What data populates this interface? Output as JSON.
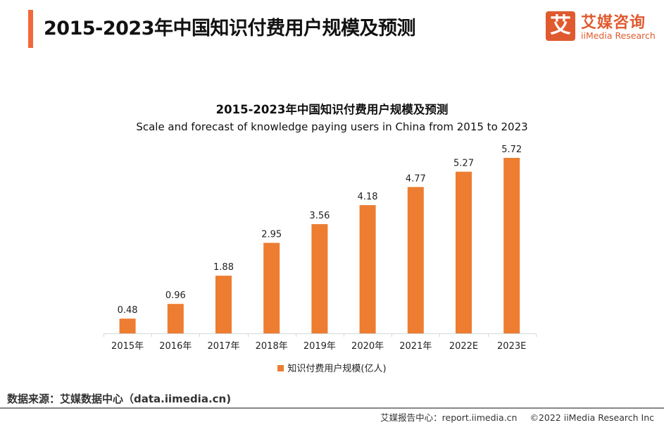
{
  "header": {
    "title": "2015-2023年中国知识付费用户规模及预测",
    "accent_color": "#f2683a"
  },
  "logo": {
    "icon_glyph": "艾",
    "name_cn": "艾媒咨询",
    "name_en": "iiMedia Research",
    "color": "#e05a2f"
  },
  "chart_data": {
    "type": "bar",
    "title": "2015-2023年中国知识付费用户规模及预测",
    "subtitle": "Scale and forecast of knowledge paying users in China from 2015 to 2023",
    "categories": [
      "2015年",
      "2016年",
      "2017年",
      "2018年",
      "2019年",
      "2020年",
      "2021年",
      "2022E",
      "2023E"
    ],
    "series": [
      {
        "name": "知识付费用户规模(亿人)",
        "values": [
          0.48,
          0.96,
          1.88,
          2.95,
          3.56,
          4.18,
          4.77,
          5.27,
          5.72
        ],
        "color": "#ed7d31"
      }
    ],
    "data_labels": [
      "0.48",
      "0.96",
      "1.88",
      "2.95",
      "3.56",
      "4.18",
      "4.77",
      "5.27",
      "5.72"
    ],
    "xlabel": "",
    "ylabel": "",
    "ylim": [
      0,
      5.72
    ],
    "grid": false,
    "y_axis_visible": false,
    "legend": {
      "position": "bottom",
      "label": "知识付费用户规模(亿人)"
    }
  },
  "footer": {
    "source": "数据来源：艾媒数据中心（data.iimedia.cn)",
    "report_center": "艾媒报告中心：report.iimedia.cn",
    "copyright": "©2022  iiMedia Research  Inc"
  }
}
